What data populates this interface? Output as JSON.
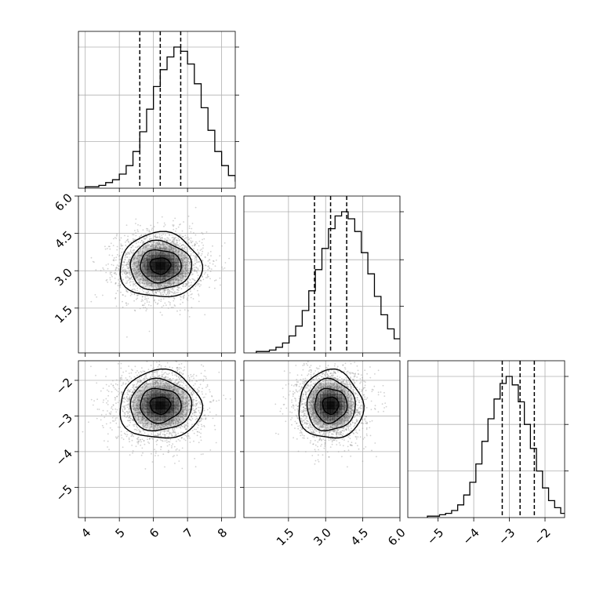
{
  "colors": {
    "hist": "#000000",
    "grid": "#b0b0b0",
    "samples": "#9a9a9a",
    "density": "#000000"
  },
  "chart_data": {
    "type": "corner",
    "grid": true,
    "parameters": [
      "p0",
      "p1",
      "p2"
    ],
    "axis_labels": {
      "p0": "",
      "p1": "",
      "p2": ""
    },
    "ranges": {
      "p0": [
        3.8,
        8.4
      ],
      "p1": [
        -0.3,
        6.0
      ],
      "p2": [
        -5.85,
        -1.45
      ]
    },
    "ticks": {
      "p0": {
        "values": [
          4,
          5,
          6,
          7,
          8
        ],
        "labels": [
          "4",
          "5",
          "6",
          "7",
          "8"
        ]
      },
      "p1": {
        "values": [
          1.5,
          3.0,
          4.5,
          6.0
        ],
        "labels": [
          "1.5",
          "3.0",
          "4.5",
          "6.0"
        ]
      },
      "p2": {
        "values": [
          -5,
          -4,
          -3,
          -2
        ],
        "labels": [
          "−5",
          "−4",
          "−3",
          "−2"
        ]
      }
    },
    "summary": {
      "p0": {
        "mean": 6.2,
        "std": 0.6,
        "quantiles": [
          5.6,
          6.2,
          6.8
        ]
      },
      "p1": {
        "mean": 3.2,
        "std": 0.65,
        "quantiles": [
          2.55,
          3.2,
          3.85
        ]
      },
      "p2": {
        "mean": -2.7,
        "std": 0.48,
        "quantiles": [
          -3.2,
          -2.7,
          -2.3
        ]
      }
    },
    "histograms": {
      "p0": {
        "bin_start": 4.0,
        "bin_width": 0.2,
        "counts": [
          1,
          1,
          2,
          4,
          6,
          10,
          16,
          26,
          40,
          56,
          72,
          84,
          93,
          100,
          97,
          88,
          74,
          57,
          41,
          26,
          16,
          9,
          5,
          3,
          2,
          1,
          1
        ]
      },
      "p1": {
        "bin_start": 0.2,
        "bin_width": 0.265,
        "counts": [
          1,
          1,
          2,
          4,
          7,
          12,
          19,
          30,
          44,
          59,
          74,
          88,
          97,
          100,
          95,
          86,
          71,
          56,
          40,
          27,
          17,
          10,
          6,
          3,
          2
        ]
      },
      "p2": {
        "bin_start": -5.3,
        "bin_width": 0.17,
        "counts": [
          1,
          1,
          2,
          3,
          5,
          9,
          16,
          25,
          38,
          54,
          70,
          84,
          95,
          100,
          94,
          82,
          66,
          49,
          33,
          21,
          12,
          7,
          3,
          2
        ]
      }
    },
    "panels": [
      {
        "kind": "hist",
        "x": "p0"
      },
      {
        "kind": "density2d",
        "x": "p0",
        "y": "p1",
        "levels": [
          0.39,
          0.86,
          0.99
        ]
      },
      {
        "kind": "hist",
        "x": "p1"
      },
      {
        "kind": "density2d",
        "x": "p0",
        "y": "p2",
        "levels": [
          0.39,
          0.86,
          0.99
        ]
      },
      {
        "kind": "density2d",
        "x": "p1",
        "y": "p2",
        "levels": [
          0.39,
          0.86,
          0.99
        ]
      },
      {
        "kind": "hist",
        "x": "p2"
      }
    ]
  }
}
